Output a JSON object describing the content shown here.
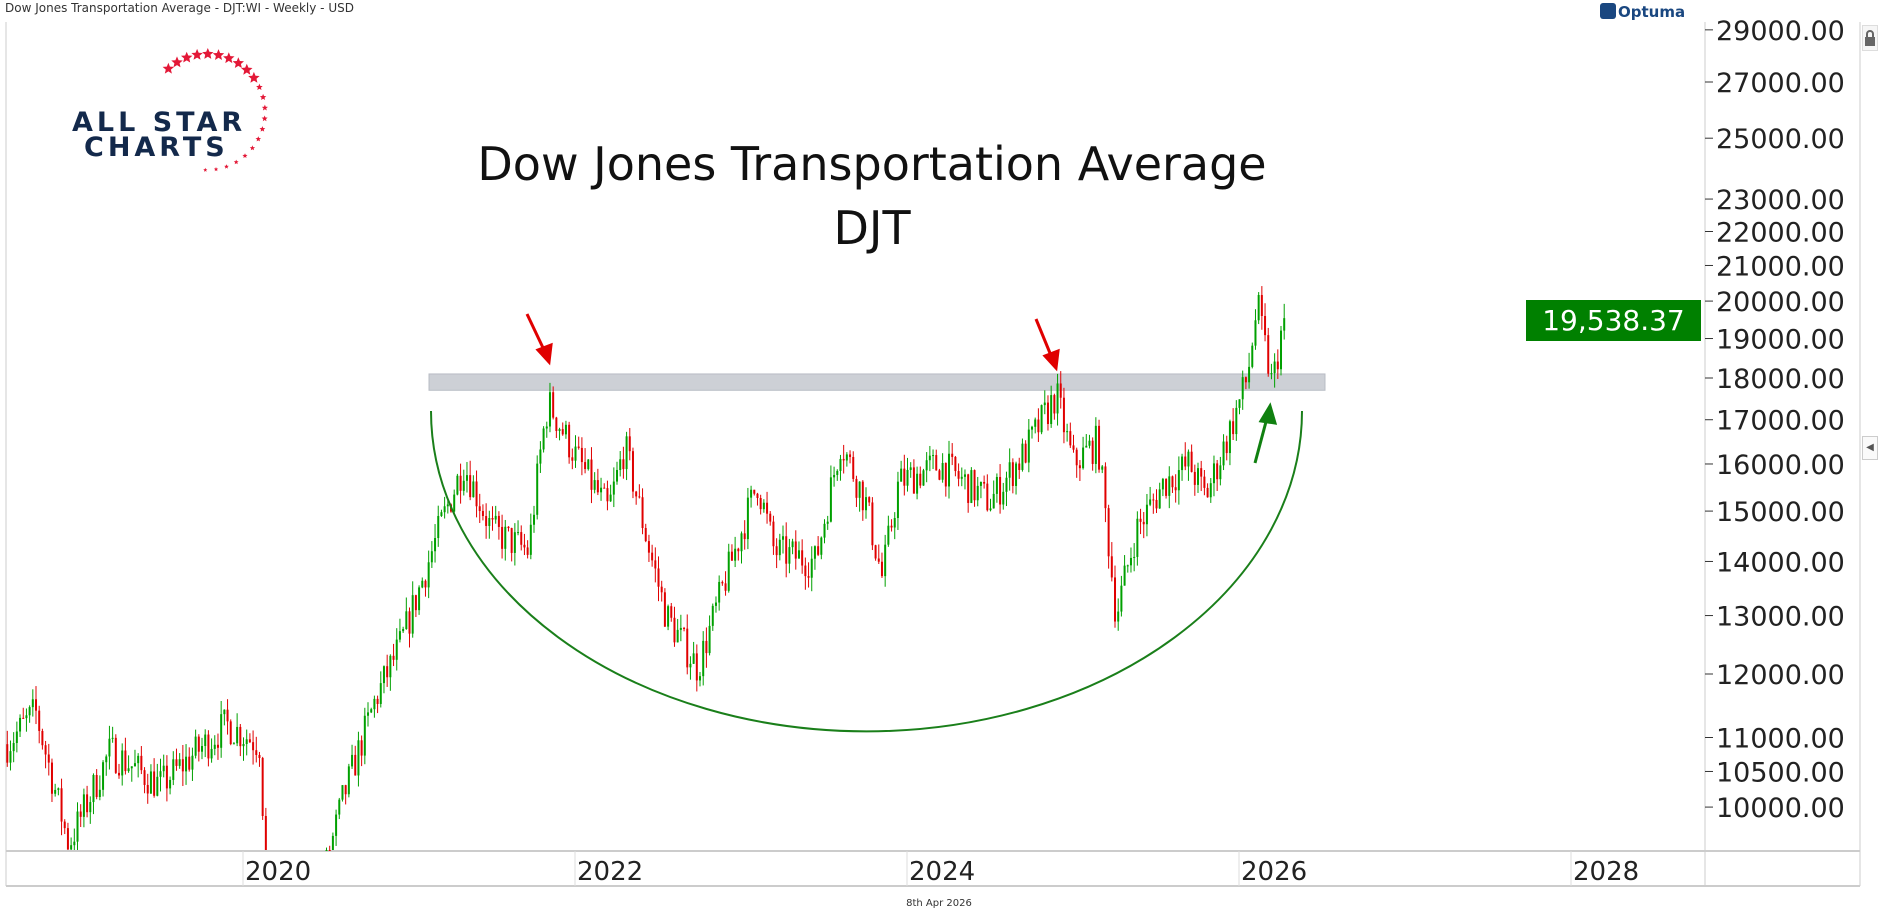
{
  "header": {
    "title": "Dow Jones Transportation Average - DJT:WI - Weekly - USD"
  },
  "brand": {
    "logo_line1": "ALL STAR",
    "logo_line2": "CHARTS",
    "vendor": "Optuma"
  },
  "footer": {
    "date": "8th Apr 2026"
  },
  "colors": {
    "up": "#00a000",
    "down": "#e00000",
    "arc": "#1a7f1a",
    "band": "#cdd0d6",
    "price_tag": "#008000",
    "logo_navy": "#13294b",
    "logo_red": "#e31837"
  },
  "chart_data": {
    "type": "candlestick",
    "title": "Dow Jones Transportation Average",
    "subtitle": "DJT",
    "interval": "weekly",
    "yscale": "log",
    "ylim": [
      9376,
      29800
    ],
    "xlim": [
      2018.55,
      2028.9
    ],
    "x_ticks": [
      "2020",
      "2022",
      "2024",
      "2026",
      "2028"
    ],
    "y_ticks": [
      "29000.00",
      "27000.00",
      "25000.00",
      "23000.00",
      "22000.00",
      "21000.00",
      "20000.00",
      "19000.00",
      "18000.00",
      "17000.00",
      "16000.00",
      "15000.00",
      "14000.00",
      "13000.00",
      "12000.00",
      "11000.00",
      "10500.00",
      "10000.00"
    ],
    "last_price": "19,538.37",
    "price_path": [
      [
        2018.58,
        10900
      ],
      [
        2018.75,
        11400
      ],
      [
        2018.95,
        9500
      ],
      [
        2019.2,
        10800
      ],
      [
        2019.5,
        10300
      ],
      [
        2019.9,
        11200
      ],
      [
        2020.1,
        10900
      ],
      [
        2020.2,
        7000
      ],
      [
        2020.4,
        8400
      ],
      [
        2020.6,
        10100
      ],
      [
        2020.8,
        11600
      ],
      [
        2020.95,
        12500
      ],
      [
        2021.2,
        14800
      ],
      [
        2021.33,
        16000
      ],
      [
        2021.5,
        14600
      ],
      [
        2021.72,
        14200
      ],
      [
        2021.8,
        16500
      ],
      [
        2021.84,
        17400
      ],
      [
        2022.0,
        16200
      ],
      [
        2022.2,
        15000
      ],
      [
        2022.3,
        16400
      ],
      [
        2022.45,
        14200
      ],
      [
        2022.55,
        13000
      ],
      [
        2022.74,
        12100
      ],
      [
        2022.9,
        13600
      ],
      [
        2023.1,
        15600
      ],
      [
        2023.2,
        14200
      ],
      [
        2023.45,
        14000
      ],
      [
        2023.6,
        16500
      ],
      [
        2023.75,
        15200
      ],
      [
        2023.85,
        13700
      ],
      [
        2023.95,
        15600
      ],
      [
        2024.2,
        16000
      ],
      [
        2024.5,
        15200
      ],
      [
        2024.7,
        16200
      ],
      [
        2024.9,
        17600
      ],
      [
        2025.0,
        16000
      ],
      [
        2025.15,
        16500
      ],
      [
        2025.26,
        13000
      ],
      [
        2025.38,
        14600
      ],
      [
        2025.55,
        15600
      ],
      [
        2025.7,
        16000
      ],
      [
        2025.8,
        15300
      ],
      [
        2025.95,
        16800
      ],
      [
        2026.05,
        18000
      ],
      [
        2026.11,
        19900
      ],
      [
        2026.2,
        17800
      ],
      [
        2026.27,
        19538
      ]
    ],
    "annotations": {
      "resistance_band": [
        17700,
        18100
      ],
      "red_arrows_at": [
        2021.84,
        2024.9
      ],
      "green_arrow_at": 2026.2,
      "rounding_bottom_arc": true
    }
  }
}
